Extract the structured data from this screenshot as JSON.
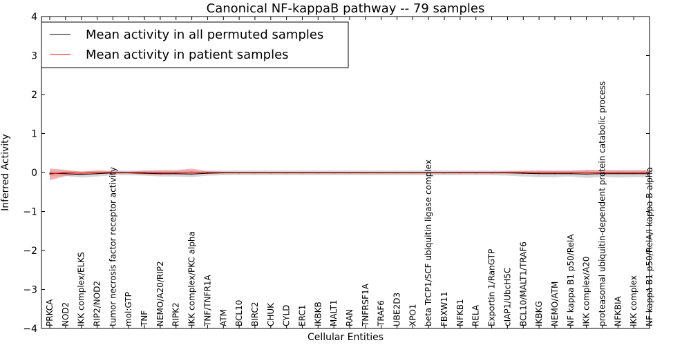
{
  "chart_data": {
    "type": "line",
    "title": "Canonical NF-kappaB pathway -- 79 samples",
    "xlabel": "Cellular Entities",
    "ylabel": "Inferred Activity",
    "ylim": [
      -4,
      4
    ],
    "yticks": [
      -4,
      -3,
      -2,
      -1,
      0,
      1,
      2,
      3,
      4
    ],
    "ytick_labels": [
      "−4",
      "−3",
      "−2",
      "−1",
      "0",
      "1",
      "2",
      "3",
      "4"
    ],
    "grid": false,
    "legend_position": "top-left",
    "categories": [
      "PRKCA",
      "NOD2",
      "IKK complex/ELKS",
      "RIP2/NOD2",
      "tumor necrosis factor receptor activity",
      "mol:GTP",
      "TNF",
      "NEMO/A20/RIP2",
      "RIPK2",
      "IKK complex/PKC alpha",
      "TNF/TNFR1A",
      "ATM",
      "BCL10",
      "BIRC2",
      "CHUK",
      "CYLD",
      "ERC1",
      "IKBKB",
      "MALT1",
      "RAN",
      "TNFRSF1A",
      "TRAF6",
      "UBE2D3",
      "XPO1",
      "beta TrCP1/SCF ubiquitin ligase complex",
      "FBXW11",
      "NFKB1",
      "RELA",
      "Exportin 1/RanGTP",
      "cIAP1/UbcH5C",
      "BCL10/MALT1/TRAF6",
      "IKBKG",
      "NEMO/ATM",
      "NF kappa B1 p50/RelA",
      "IKK complex/A20",
      "proteasomal ubiquitin-dependent protein catabolic process",
      "NFKBIA",
      "IKK complex",
      "NF kappa B1 p50/RelA/I kappa B alpha"
    ],
    "series": [
      {
        "name": "Mean activity in all permuted samples",
        "color": "#000000",
        "band_color": "#c8c8c8",
        "values": [
          -0.02,
          -0.03,
          -0.05,
          -0.03,
          -0.01,
          -0.01,
          -0.02,
          -0.03,
          -0.03,
          -0.04,
          -0.02,
          -0.01,
          -0.01,
          -0.01,
          -0.01,
          -0.01,
          -0.01,
          -0.01,
          -0.01,
          -0.01,
          -0.01,
          -0.01,
          -0.01,
          -0.01,
          -0.01,
          -0.01,
          -0.01,
          -0.01,
          -0.01,
          -0.01,
          -0.02,
          -0.03,
          -0.03,
          -0.03,
          -0.04,
          -0.03,
          -0.03,
          -0.03,
          -0.03
        ],
        "lower": [
          -0.1,
          -0.09,
          -0.13,
          -0.1,
          -0.07,
          -0.07,
          -0.08,
          -0.1,
          -0.1,
          -0.12,
          -0.08,
          -0.07,
          -0.07,
          -0.07,
          -0.07,
          -0.07,
          -0.07,
          -0.07,
          -0.07,
          -0.07,
          -0.07,
          -0.07,
          -0.07,
          -0.07,
          -0.07,
          -0.07,
          -0.07,
          -0.07,
          -0.07,
          -0.08,
          -0.1,
          -0.12,
          -0.12,
          -0.1,
          -0.14,
          -0.11,
          -0.13,
          -0.12,
          -0.12
        ],
        "upper": [
          0.05,
          0.04,
          0.03,
          0.04,
          0.05,
          0.05,
          0.05,
          0.05,
          0.05,
          0.05,
          0.05,
          0.05,
          0.05,
          0.05,
          0.05,
          0.05,
          0.05,
          0.05,
          0.05,
          0.05,
          0.05,
          0.05,
          0.05,
          0.05,
          0.05,
          0.05,
          0.05,
          0.05,
          0.05,
          0.05,
          0.05,
          0.05,
          0.05,
          0.05,
          0.05,
          0.05,
          0.05,
          0.05,
          0.05
        ]
      },
      {
        "name": "Mean activity in patient samples",
        "color": "#ff0000",
        "band_color": "#f08080",
        "values": [
          -0.04,
          0.0,
          -0.02,
          0.0,
          0.0,
          0.0,
          0.0,
          0.0,
          0.0,
          0.01,
          0.0,
          0.0,
          0.0,
          0.0,
          0.0,
          0.0,
          0.0,
          0.0,
          0.0,
          0.0,
          0.0,
          0.0,
          0.0,
          0.0,
          0.0,
          0.0,
          0.0,
          0.0,
          0.0,
          0.0,
          0.0,
          0.0,
          0.0,
          0.0,
          0.0,
          0.0,
          0.0,
          0.0,
          0.0
        ],
        "lower": [
          -0.2,
          -0.09,
          -0.06,
          -0.03,
          -0.02,
          -0.02,
          -0.05,
          -0.06,
          -0.05,
          -0.05,
          -0.02,
          -0.01,
          -0.01,
          -0.01,
          -0.01,
          -0.01,
          -0.01,
          -0.01,
          -0.01,
          -0.01,
          -0.01,
          -0.01,
          -0.01,
          -0.01,
          -0.01,
          -0.01,
          -0.01,
          -0.01,
          -0.02,
          -0.02,
          -0.03,
          -0.04,
          -0.04,
          -0.04,
          -0.04,
          -0.04,
          -0.04,
          -0.04,
          -0.04
        ],
        "upper": [
          0.1,
          0.07,
          0.02,
          0.06,
          0.03,
          0.02,
          0.05,
          0.06,
          0.06,
          0.1,
          0.03,
          0.02,
          0.01,
          0.01,
          0.01,
          0.01,
          0.01,
          0.01,
          0.01,
          0.01,
          0.01,
          0.01,
          0.01,
          0.01,
          0.01,
          0.01,
          0.02,
          0.02,
          0.02,
          0.03,
          0.04,
          0.05,
          0.05,
          0.05,
          0.07,
          0.06,
          0.06,
          0.06,
          0.06
        ]
      }
    ]
  }
}
